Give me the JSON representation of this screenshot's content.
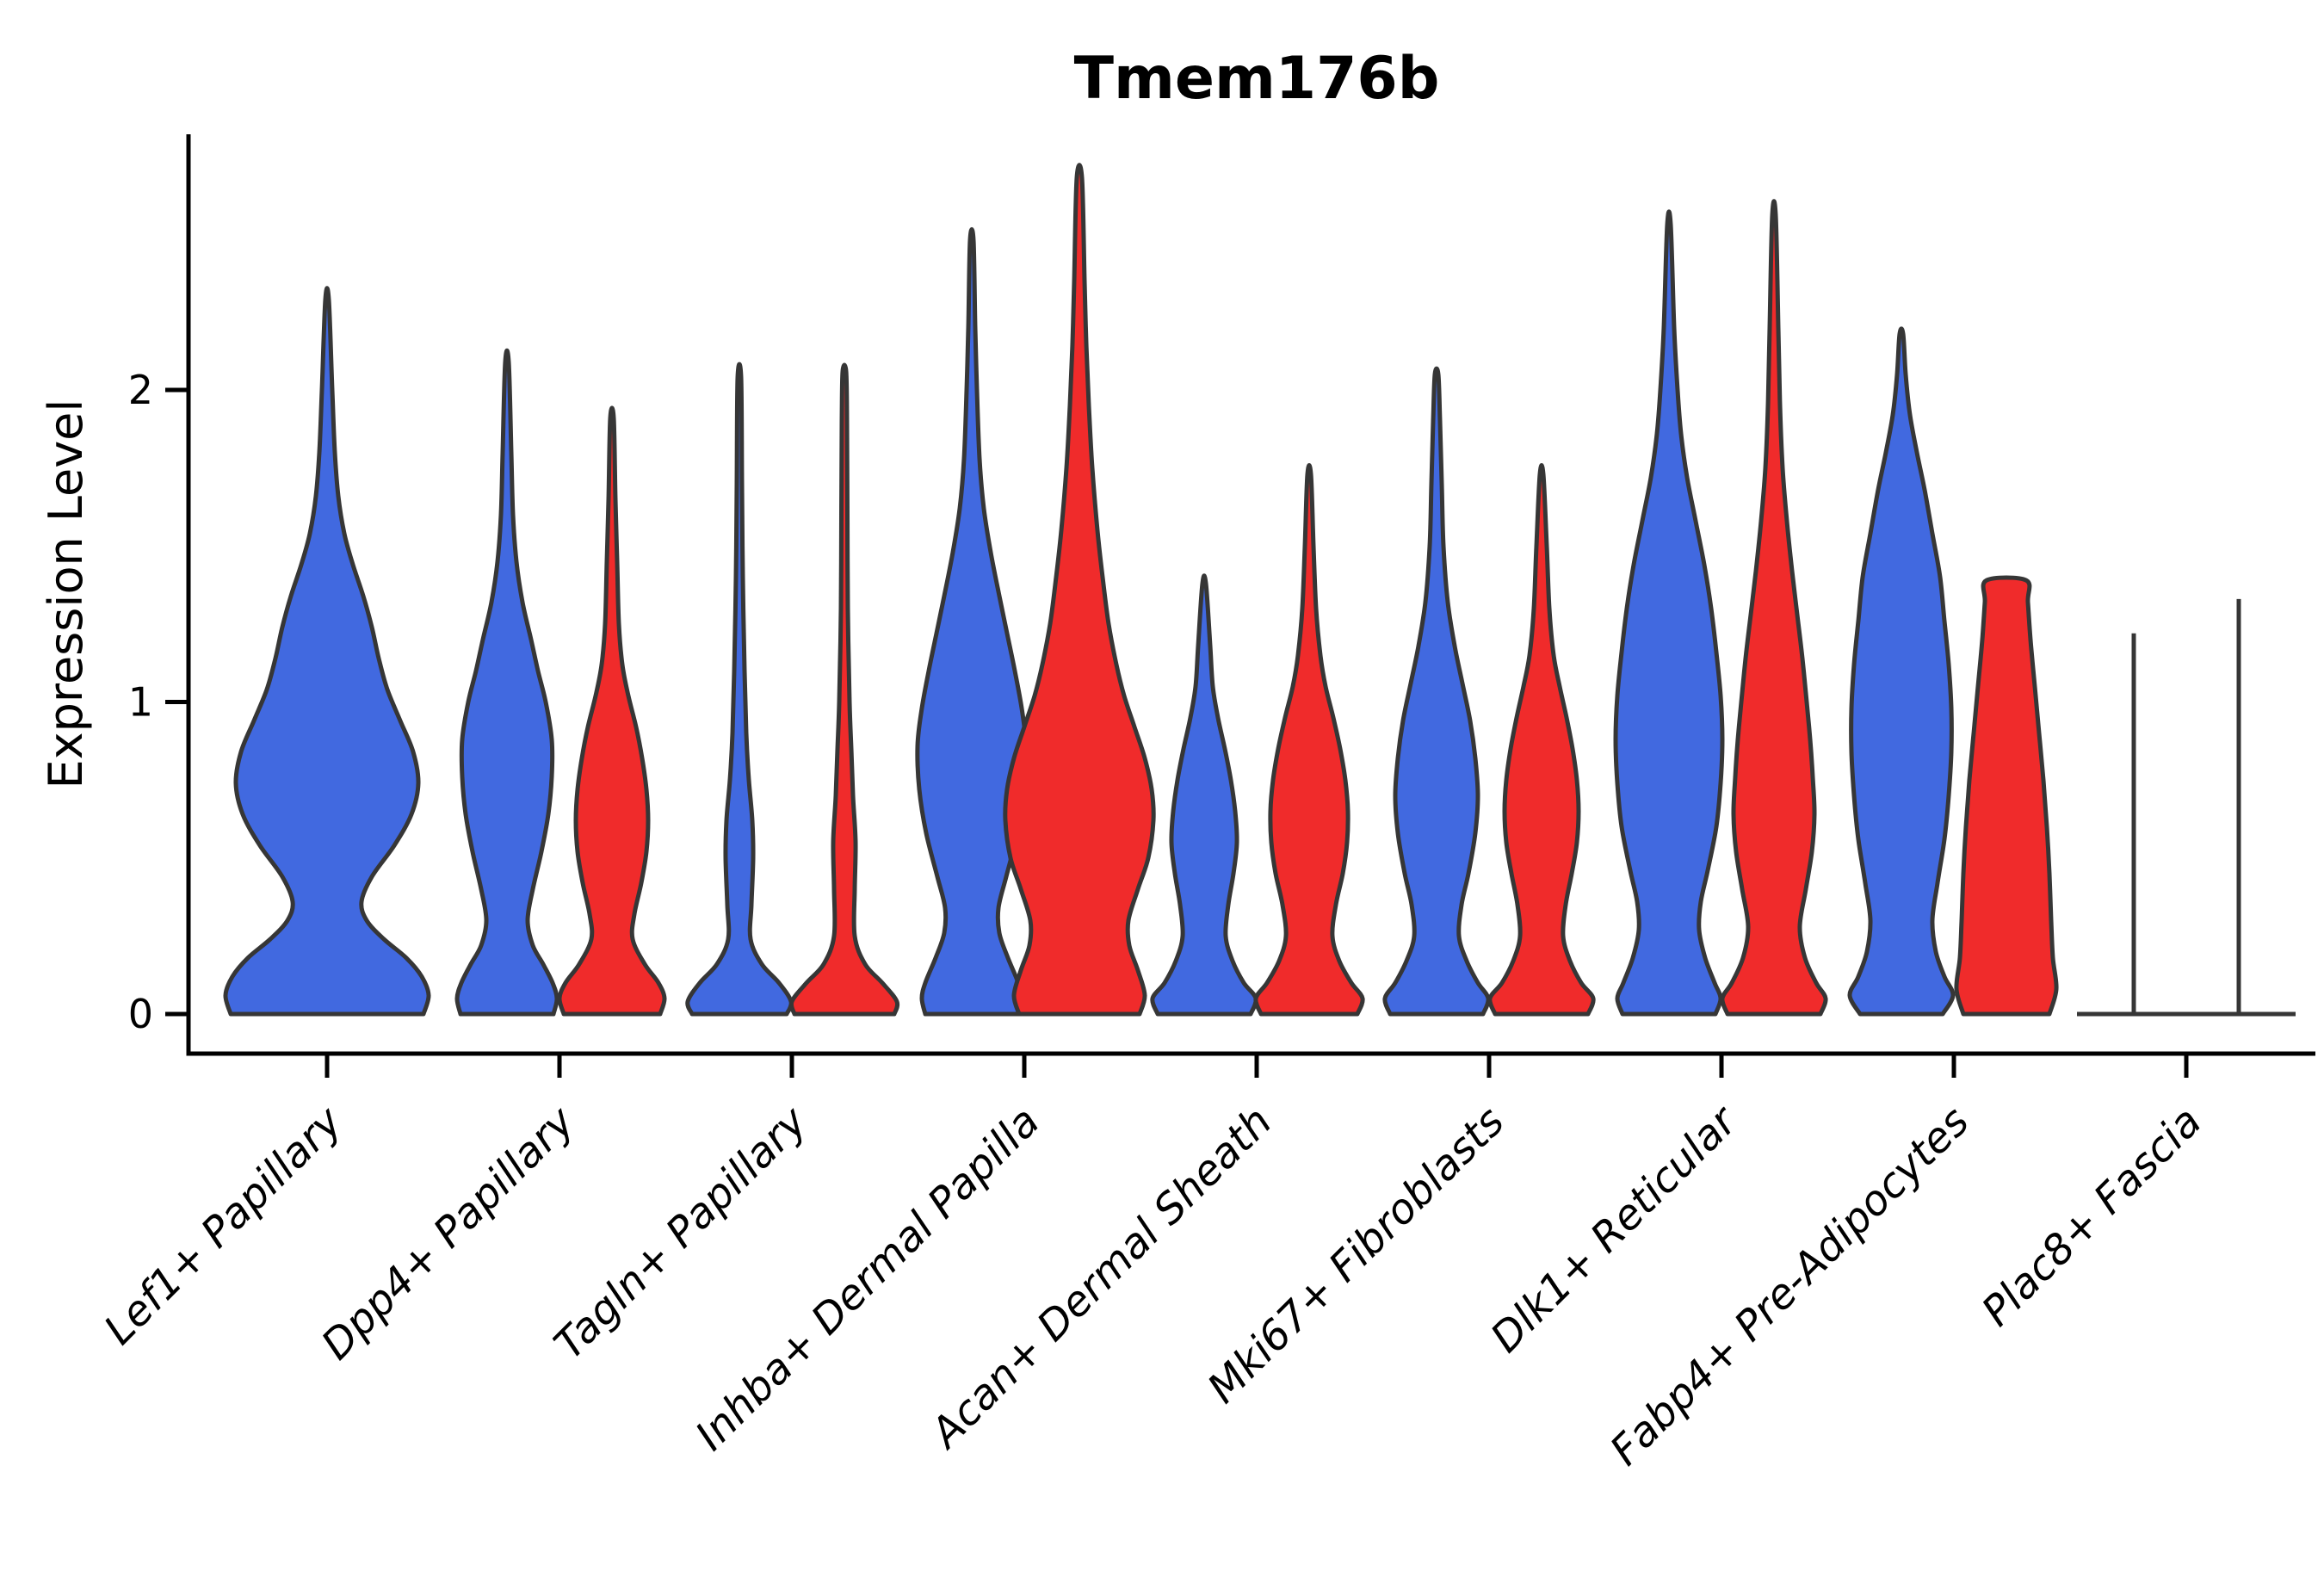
{
  "chart_data": {
    "type": "violin",
    "title": "Tmem176b",
    "ylabel": "Expression Level",
    "xlabel": "",
    "ylim": [
      -0.18,
      2.82
    ],
    "yticks": [
      0,
      1,
      2
    ],
    "grid": false,
    "legend": null,
    "background": "#ffffff",
    "axis_color": "#000000",
    "outline_color": "#363636",
    "series_colors": {
      "blue": "#4169E0",
      "red": "#F02B2B"
    },
    "categories": [
      "Lef1+ Papillary",
      "Dpp4+ Papillary",
      "Tagln+ Papillary",
      "Inhba+ Dermal Papilla",
      "Acan+ Dermal Sheath",
      "Mki67+ Fibroblasts",
      "Dlk1+ Reticular",
      "Fabp4+ Pre-Adipocytes",
      "Plac8+ Fascia"
    ],
    "violins": [
      {
        "category": "Lef1+ Papillary",
        "cat_index": 0,
        "series": "blue",
        "center_x": 340,
        "max_expression": 2.29,
        "profile": [
          [
            0,
            112
          ],
          [
            0.06,
            118
          ],
          [
            0.12,
            110
          ],
          [
            0.18,
            92
          ],
          [
            0.24,
            66
          ],
          [
            0.3,
            46
          ],
          [
            0.36,
            40
          ],
          [
            0.44,
            52
          ],
          [
            0.54,
            78
          ],
          [
            0.64,
            98
          ],
          [
            0.74,
            106
          ],
          [
            0.84,
            100
          ],
          [
            0.94,
            85
          ],
          [
            1.04,
            70
          ],
          [
            1.14,
            60
          ],
          [
            1.24,
            52
          ],
          [
            1.34,
            42
          ],
          [
            1.44,
            30
          ],
          [
            1.54,
            20
          ],
          [
            1.66,
            13
          ],
          [
            1.8,
            9
          ],
          [
            2.0,
            6
          ],
          [
            2.29,
            2
          ]
        ]
      },
      {
        "category": "Dpp4+ Papillary",
        "cat_index": 1,
        "series": "blue",
        "center_x": 549,
        "max_expression": 2.09,
        "profile": [
          [
            0,
            54
          ],
          [
            0.05,
            58
          ],
          [
            0.1,
            53
          ],
          [
            0.16,
            42
          ],
          [
            0.22,
            30
          ],
          [
            0.3,
            24
          ],
          [
            0.4,
            30
          ],
          [
            0.52,
            40
          ],
          [
            0.64,
            48
          ],
          [
            0.76,
            52
          ],
          [
            0.88,
            52
          ],
          [
            1.0,
            45
          ],
          [
            1.1,
            36
          ],
          [
            1.2,
            28
          ],
          [
            1.32,
            18
          ],
          [
            1.45,
            11
          ],
          [
            1.6,
            7
          ],
          [
            1.8,
            5
          ],
          [
            2.09,
            2
          ]
        ]
      },
      {
        "category": "Dpp4+ Papillary",
        "cat_index": 1,
        "series": "red",
        "center_x": 671,
        "max_expression": 1.91,
        "profile": [
          [
            0,
            56
          ],
          [
            0.05,
            61
          ],
          [
            0.1,
            54
          ],
          [
            0.16,
            38
          ],
          [
            0.24,
            24
          ],
          [
            0.32,
            26
          ],
          [
            0.42,
            34
          ],
          [
            0.52,
            40
          ],
          [
            0.62,
            42
          ],
          [
            0.72,
            40
          ],
          [
            0.82,
            35
          ],
          [
            0.92,
            28
          ],
          [
            1.02,
            19
          ],
          [
            1.12,
            12
          ],
          [
            1.25,
            8
          ],
          [
            1.45,
            6
          ],
          [
            1.65,
            4
          ],
          [
            1.91,
            2
          ]
        ]
      },
      {
        "category": "Tagln+ Papillary",
        "cat_index": 2,
        "series": "blue",
        "center_x": 819,
        "max_expression": 2.04,
        "profile": [
          [
            0,
            55
          ],
          [
            0.04,
            60
          ],
          [
            0.1,
            46
          ],
          [
            0.16,
            26
          ],
          [
            0.24,
            13
          ],
          [
            0.35,
            14
          ],
          [
            0.5,
            16
          ],
          [
            0.62,
            15
          ],
          [
            0.75,
            11
          ],
          [
            0.9,
            8
          ],
          [
            1.1,
            6
          ],
          [
            1.4,
            4
          ],
          [
            1.7,
            3
          ],
          [
            2.04,
            2
          ]
        ]
      },
      {
        "category": "Tagln+ Papillary",
        "cat_index": 2,
        "series": "red",
        "center_x": 941,
        "max_expression": 2.06,
        "profile": [
          [
            0,
            58
          ],
          [
            0.04,
            61
          ],
          [
            0.1,
            44
          ],
          [
            0.16,
            24
          ],
          [
            0.25,
            12
          ],
          [
            0.4,
            12
          ],
          [
            0.55,
            13
          ],
          [
            0.7,
            10
          ],
          [
            0.85,
            8
          ],
          [
            1.0,
            6
          ],
          [
            1.3,
            4
          ],
          [
            1.6,
            3.5
          ],
          [
            1.9,
            3
          ],
          [
            2.06,
            2
          ]
        ]
      },
      {
        "category": "Inhba+ Dermal Papilla",
        "cat_index": 3,
        "series": "blue",
        "center_x": 1089,
        "max_expression": 2.48,
        "profile": [
          [
            0,
            54
          ],
          [
            0.05,
            58
          ],
          [
            0.1,
            54
          ],
          [
            0.18,
            42
          ],
          [
            0.26,
            32
          ],
          [
            0.34,
            31
          ],
          [
            0.44,
            40
          ],
          [
            0.58,
            53
          ],
          [
            0.72,
            61
          ],
          [
            0.86,
            63
          ],
          [
            0.98,
            58
          ],
          [
            1.1,
            50
          ],
          [
            1.22,
            41
          ],
          [
            1.34,
            32
          ],
          [
            1.48,
            22
          ],
          [
            1.62,
            14
          ],
          [
            1.78,
            9
          ],
          [
            2.0,
            6
          ],
          [
            2.2,
            4
          ],
          [
            2.48,
            2
          ]
        ]
      },
      {
        "category": "Inhba+ Dermal Papilla",
        "cat_index": 3,
        "series": "red",
        "center_x": 1214,
        "max_expression": 2.68,
        "profile": [
          [
            0,
            70
          ],
          [
            0.06,
            76
          ],
          [
            0.14,
            68
          ],
          [
            0.22,
            58
          ],
          [
            0.3,
            57
          ],
          [
            0.4,
            68
          ],
          [
            0.5,
            80
          ],
          [
            0.62,
            86
          ],
          [
            0.72,
            84
          ],
          [
            0.82,
            76
          ],
          [
            0.92,
            64
          ],
          [
            1.02,
            52
          ],
          [
            1.12,
            43
          ],
          [
            1.25,
            34
          ],
          [
            1.4,
            27
          ],
          [
            1.55,
            21
          ],
          [
            1.75,
            15
          ],
          [
            1.95,
            11
          ],
          [
            2.15,
            8
          ],
          [
            2.35,
            6
          ],
          [
            2.68,
            3
          ]
        ]
      },
      {
        "category": "Acan+ Dermal Sheath",
        "cat_index": 4,
        "series": "blue",
        "center_x": 1359,
        "max_expression": 1.38,
        "profile": [
          [
            0,
            54
          ],
          [
            0.05,
            60
          ],
          [
            0.1,
            46
          ],
          [
            0.17,
            33
          ],
          [
            0.25,
            25
          ],
          [
            0.35,
            28
          ],
          [
            0.45,
            34
          ],
          [
            0.55,
            38
          ],
          [
            0.65,
            36
          ],
          [
            0.75,
            31
          ],
          [
            0.85,
            24
          ],
          [
            0.95,
            16
          ],
          [
            1.05,
            10
          ],
          [
            1.18,
            7
          ],
          [
            1.38,
            2
          ]
        ]
      },
      {
        "category": "Acan+ Dermal Sheath",
        "cat_index": 4,
        "series": "red",
        "center_x": 1481,
        "max_expression": 1.73,
        "profile": [
          [
            0,
            56
          ],
          [
            0.05,
            62
          ],
          [
            0.1,
            49
          ],
          [
            0.17,
            35
          ],
          [
            0.25,
            27
          ],
          [
            0.35,
            31
          ],
          [
            0.45,
            39
          ],
          [
            0.55,
            44
          ],
          [
            0.65,
            45
          ],
          [
            0.75,
            42
          ],
          [
            0.85,
            36
          ],
          [
            0.95,
            28
          ],
          [
            1.05,
            19
          ],
          [
            1.15,
            13
          ],
          [
            1.3,
            8
          ],
          [
            1.5,
            5
          ],
          [
            1.73,
            2
          ]
        ]
      },
      {
        "category": "Mki67+ Fibroblasts",
        "cat_index": 5,
        "series": "blue",
        "center_x": 1629,
        "max_expression": 2.05,
        "profile": [
          [
            0,
            54
          ],
          [
            0.05,
            60
          ],
          [
            0.1,
            48
          ],
          [
            0.17,
            35
          ],
          [
            0.25,
            26
          ],
          [
            0.35,
            29
          ],
          [
            0.45,
            37
          ],
          [
            0.58,
            45
          ],
          [
            0.7,
            48
          ],
          [
            0.82,
            45
          ],
          [
            0.94,
            39
          ],
          [
            1.06,
            30
          ],
          [
            1.18,
            21
          ],
          [
            1.32,
            13
          ],
          [
            1.5,
            8
          ],
          [
            1.7,
            6
          ],
          [
            1.9,
            4
          ],
          [
            2.05,
            2
          ]
        ]
      },
      {
        "category": "Mki67+ Fibroblasts",
        "cat_index": 5,
        "series": "red",
        "center_x": 1751,
        "max_expression": 1.73,
        "profile": [
          [
            0,
            54
          ],
          [
            0.05,
            60
          ],
          [
            0.1,
            46
          ],
          [
            0.17,
            33
          ],
          [
            0.25,
            25
          ],
          [
            0.35,
            28
          ],
          [
            0.45,
            35
          ],
          [
            0.55,
            41
          ],
          [
            0.65,
            43
          ],
          [
            0.75,
            41
          ],
          [
            0.85,
            36
          ],
          [
            0.95,
            29
          ],
          [
            1.05,
            21
          ],
          [
            1.15,
            14
          ],
          [
            1.3,
            9
          ],
          [
            1.5,
            6
          ],
          [
            1.73,
            2
          ]
        ]
      },
      {
        "category": "Dlk1+ Reticular",
        "cat_index": 6,
        "series": "blue",
        "center_x": 1899,
        "max_expression": 2.53,
        "profile": [
          [
            0,
            54
          ],
          [
            0.05,
            60
          ],
          [
            0.1,
            53
          ],
          [
            0.18,
            42
          ],
          [
            0.27,
            35
          ],
          [
            0.36,
            37
          ],
          [
            0.46,
            45
          ],
          [
            0.6,
            55
          ],
          [
            0.74,
            60
          ],
          [
            0.88,
            62
          ],
          [
            1.02,
            60
          ],
          [
            1.16,
            55
          ],
          [
            1.3,
            49
          ],
          [
            1.44,
            41
          ],
          [
            1.58,
            31
          ],
          [
            1.72,
            21
          ],
          [
            1.86,
            14
          ],
          [
            2.0,
            10
          ],
          [
            2.2,
            6
          ],
          [
            2.53,
            2
          ]
        ]
      },
      {
        "category": "Dlk1+ Reticular",
        "cat_index": 6,
        "series": "red",
        "center_x": 2021,
        "max_expression": 2.56,
        "profile": [
          [
            0,
            54
          ],
          [
            0.05,
            60
          ],
          [
            0.1,
            49
          ],
          [
            0.18,
            36
          ],
          [
            0.28,
            30
          ],
          [
            0.4,
            37
          ],
          [
            0.52,
            44
          ],
          [
            0.64,
            47
          ],
          [
            0.76,
            45
          ],
          [
            0.88,
            42
          ],
          [
            1.0,
            38
          ],
          [
            1.14,
            33
          ],
          [
            1.28,
            27
          ],
          [
            1.42,
            21
          ],
          [
            1.58,
            15
          ],
          [
            1.75,
            10
          ],
          [
            1.95,
            7
          ],
          [
            2.2,
            5
          ],
          [
            2.56,
            2
          ]
        ]
      },
      {
        "category": "Fabp4+ Pre-Adipocytes",
        "cat_index": 7,
        "series": "blue",
        "center_x": 2169,
        "max_expression": 2.18,
        "profile": [
          [
            0,
            48
          ],
          [
            0.06,
            60
          ],
          [
            0.12,
            50
          ],
          [
            0.2,
            40
          ],
          [
            0.3,
            36
          ],
          [
            0.42,
            42
          ],
          [
            0.56,
            50
          ],
          [
            0.7,
            55
          ],
          [
            0.84,
            58
          ],
          [
            0.98,
            58
          ],
          [
            1.12,
            55
          ],
          [
            1.26,
            50
          ],
          [
            1.4,
            45
          ],
          [
            1.54,
            36
          ],
          [
            1.68,
            27
          ],
          [
            1.8,
            18
          ],
          [
            1.92,
            10
          ],
          [
            2.05,
            5
          ],
          [
            2.18,
            2
          ]
        ]
      },
      {
        "category": "Fabp4+ Pre-Adipocytes",
        "cat_index": 7,
        "series": "red",
        "center_x": 2291,
        "max_expression": 1.39,
        "flat_top": true,
        "profile": [
          [
            0,
            50
          ],
          [
            0.08,
            58
          ],
          [
            0.18,
            54
          ],
          [
            0.3,
            52
          ],
          [
            0.45,
            50
          ],
          [
            0.6,
            47
          ],
          [
            0.75,
            43
          ],
          [
            0.9,
            38
          ],
          [
            1.05,
            33
          ],
          [
            1.2,
            28
          ],
          [
            1.32,
            25
          ],
          [
            1.39,
            23
          ]
        ]
      },
      {
        "category": "Plac8+ Fascia",
        "cat_index": 8,
        "series": "blue",
        "center_x": 2439,
        "max_expression": 1.22,
        "zero_width": true,
        "baseline_half_width": 66
      },
      {
        "category": "Plac8+ Fascia",
        "cat_index": 8,
        "series": "red",
        "center_x": 2561,
        "max_expression": 1.33,
        "zero_width": true,
        "baseline_half_width": 66
      }
    ]
  }
}
